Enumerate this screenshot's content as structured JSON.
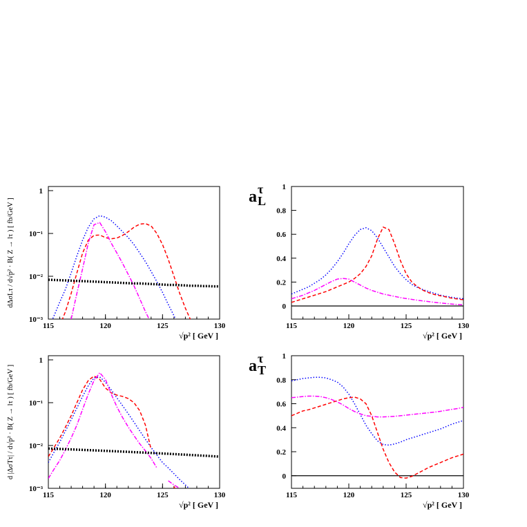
{
  "chart_data": [
    {
      "type": "line",
      "log_y": true,
      "ylabel": "dΔσLτ / d√p² · B( Z → lτ ) [ fb/GeV ]",
      "xlabel": "√p² [ GeV ]",
      "x": [
        115,
        115.5,
        116,
        116.5,
        117,
        117.5,
        118,
        118.5,
        119,
        119.5,
        120,
        120.5,
        121,
        121.5,
        122,
        122.5,
        123,
        123.5,
        124,
        124.5,
        125,
        125.5,
        126,
        126.5,
        127,
        127.5,
        128,
        128.5,
        129,
        129.5,
        130
      ],
      "xlim": [
        115,
        130
      ],
      "xticks": [
        115,
        120,
        125,
        130
      ],
      "ylim": [
        0.001,
        1.25
      ],
      "yticks": [
        {
          "value": 0.001,
          "label": "10⁻³"
        },
        {
          "value": 0.01,
          "label": "10⁻²"
        },
        {
          "value": 0.1,
          "label": "10⁻¹"
        },
        1
      ],
      "series": [
        {
          "color": "#0000ff",
          "dash": "1.5,2.5",
          "width": 1.5,
          "values": [
            0.0006,
            0.0012,
            0.0025,
            0.005,
            0.012,
            0.03,
            0.07,
            0.14,
            0.22,
            0.26,
            0.24,
            0.2,
            0.15,
            0.11,
            0.08,
            0.055,
            0.035,
            0.022,
            0.013,
            0.0075,
            0.0042,
            0.0022,
            0.0012,
            0.0006,
            null,
            null,
            null,
            null,
            null,
            null,
            null
          ]
        },
        {
          "color": "#ff0000",
          "dash": "5,3",
          "width": 1.5,
          "values": [
            null,
            null,
            0.0007,
            0.0015,
            0.004,
            0.012,
            0.035,
            0.07,
            0.09,
            0.092,
            0.08,
            0.075,
            0.078,
            0.09,
            0.11,
            0.14,
            0.165,
            0.17,
            0.15,
            0.1,
            0.055,
            0.025,
            0.01,
            0.004,
            0.0018,
            0.0009,
            null,
            null,
            null,
            null,
            null
          ]
        },
        {
          "color": "#ff00ff",
          "dash": "6,2,1.5,2",
          "width": 1.5,
          "values": [
            null,
            null,
            null,
            null,
            0.001,
            0.004,
            0.015,
            0.06,
            0.16,
            0.18,
            0.11,
            0.06,
            0.035,
            0.02,
            0.011,
            0.006,
            0.003,
            0.0015,
            0.0008,
            null,
            null,
            null,
            null,
            null,
            null,
            null,
            null,
            null,
            null,
            null,
            null
          ]
        },
        {
          "color": "#000000",
          "dash": "2,2",
          "width": 3.5,
          "values": [
            0.0083,
            0.0082,
            0.0081,
            0.008,
            0.0079,
            0.0078,
            0.0077,
            0.0076,
            0.0075,
            0.0074,
            0.0073,
            0.0072,
            0.0071,
            0.007,
            0.0069,
            0.0068,
            0.0068,
            0.0067,
            0.0066,
            0.0065,
            0.0064,
            0.0063,
            0.0063,
            0.0062,
            0.0061,
            0.006,
            0.006,
            0.0059,
            0.0059,
            0.0058,
            0.0058
          ]
        }
      ]
    },
    {
      "type": "line",
      "log_y": false,
      "zero_line": true,
      "ylabel": "a",
      "ylabel_sup": "τ",
      "ylabel_sub": "L",
      "xlabel": "√p² [ GeV ]",
      "x": [
        115,
        115.5,
        116,
        116.5,
        117,
        117.5,
        118,
        118.5,
        119,
        119.5,
        120,
        120.5,
        121,
        121.5,
        122,
        122.5,
        123,
        123.5,
        124,
        124.5,
        125,
        125.5,
        126,
        126.5,
        127,
        127.5,
        128,
        128.5,
        129,
        129.5,
        130
      ],
      "xlim": [
        115,
        130
      ],
      "xticks": [
        115,
        120,
        125,
        130
      ],
      "ylim": [
        -0.11,
        1.0
      ],
      "yticks": [
        0,
        0.2,
        0.4,
        0.6,
        0.8,
        1
      ],
      "series": [
        {
          "color": "#0000ff",
          "dash": "1.5,2.5",
          "width": 1.5,
          "values": [
            0.1,
            0.12,
            0.14,
            0.16,
            0.19,
            0.22,
            0.26,
            0.31,
            0.37,
            0.44,
            0.52,
            0.59,
            0.64,
            0.655,
            0.63,
            0.57,
            0.49,
            0.41,
            0.33,
            0.27,
            0.22,
            0.18,
            0.155,
            0.135,
            0.12,
            0.105,
            0.09,
            0.08,
            0.072,
            0.065,
            0.06
          ]
        },
        {
          "color": "#ff0000",
          "dash": "5,3",
          "width": 1.5,
          "values": [
            0.03,
            0.045,
            0.06,
            0.075,
            0.09,
            0.105,
            0.12,
            0.14,
            0.16,
            0.18,
            0.2,
            0.23,
            0.27,
            0.33,
            0.42,
            0.56,
            0.66,
            0.64,
            0.52,
            0.38,
            0.27,
            0.2,
            0.16,
            0.13,
            0.11,
            0.095,
            0.085,
            0.075,
            0.065,
            0.058,
            0.052
          ]
        },
        {
          "color": "#ff00ff",
          "dash": "6,2,1.5,2",
          "width": 1.5,
          "values": [
            0.06,
            0.075,
            0.09,
            0.11,
            0.13,
            0.155,
            0.18,
            0.205,
            0.225,
            0.23,
            0.225,
            0.2,
            0.175,
            0.15,
            0.13,
            0.115,
            0.1,
            0.09,
            0.08,
            0.07,
            0.062,
            0.055,
            0.048,
            0.042,
            0.036,
            0.03,
            0.025,
            0.02,
            0.016,
            0.012,
            0.009
          ]
        }
      ]
    },
    {
      "type": "line",
      "log_y": true,
      "ylabel": "d |ΔσTτ| / d√p² · B( Z → lτ ) [ fb/GeV ]",
      "xlabel": "√p² [ GeV ]",
      "x": [
        115,
        115.5,
        116,
        116.5,
        117,
        117.5,
        118,
        118.5,
        119,
        119.5,
        120,
        120.5,
        121,
        121.5,
        122,
        122.5,
        123,
        123.5,
        124,
        124.5,
        125,
        125.5,
        126,
        126.5,
        127,
        127.5,
        128,
        128.5,
        129,
        129.5,
        130
      ],
      "xlim": [
        115,
        130
      ],
      "xticks": [
        115,
        120,
        125,
        130
      ],
      "ylim": [
        0.001,
        1.25
      ],
      "yticks": [
        {
          "value": 0.001,
          "label": "10⁻³"
        },
        {
          "value": 0.01,
          "label": "10⁻²"
        },
        {
          "value": 0.1,
          "label": "10⁻¹"
        },
        1
      ],
      "series": [
        {
          "color": "#0000ff",
          "dash": "1.5,2.5",
          "width": 1.5,
          "values": [
            0.004,
            0.007,
            0.012,
            0.022,
            0.04,
            0.075,
            0.14,
            0.25,
            0.38,
            0.4,
            0.3,
            0.2,
            0.13,
            0.085,
            0.055,
            0.035,
            0.022,
            0.014,
            0.009,
            0.006,
            0.004,
            0.003,
            0.0022,
            0.0016,
            0.0012,
            0.0009,
            null,
            null,
            null,
            null,
            null
          ]
        },
        {
          "color": "#ff0000",
          "dash": "5,3",
          "width": 1.5,
          "values": [
            0.0055,
            0.009,
            0.015,
            0.027,
            0.05,
            0.1,
            0.2,
            0.33,
            0.42,
            0.35,
            0.22,
            0.17,
            0.15,
            0.14,
            0.125,
            0.1,
            0.065,
            0.03,
            0.008,
            null,
            0.004,
            null,
            0.0011,
            0.0006,
            null,
            null,
            null,
            null,
            null,
            null,
            null
          ]
        },
        {
          "color": "#ff00ff",
          "dash": "6,2,1.5,2",
          "width": 1.5,
          "values": [
            0.0017,
            0.0028,
            0.0045,
            0.008,
            0.015,
            0.03,
            0.07,
            0.16,
            0.33,
            0.5,
            0.35,
            0.16,
            0.08,
            0.045,
            0.027,
            0.017,
            0.011,
            0.0075,
            0.005,
            0.003,
            null,
            0.0015,
            0.0012,
            0.001,
            null,
            null,
            null,
            null,
            null,
            null,
            null
          ]
        },
        {
          "color": "#000000",
          "dash": "2,2",
          "width": 3.5,
          "values": [
            0.0085,
            0.0084,
            0.0083,
            0.0082,
            0.0081,
            0.008,
            0.0079,
            0.0078,
            0.0077,
            0.0076,
            0.0075,
            0.0074,
            0.0073,
            0.0072,
            0.0071,
            0.007,
            0.0069,
            0.0068,
            0.0067,
            0.0066,
            0.0065,
            0.0064,
            0.0063,
            0.0062,
            0.0061,
            0.006,
            0.0059,
            0.0058,
            0.0057,
            0.0056,
            0.0055
          ]
        }
      ]
    },
    {
      "type": "line",
      "log_y": false,
      "zero_line": true,
      "ylabel": "a",
      "ylabel_sup": "τ",
      "ylabel_sub": "T",
      "xlabel": "√p² [ GeV ]",
      "x": [
        115,
        115.5,
        116,
        116.5,
        117,
        117.5,
        118,
        118.5,
        119,
        119.5,
        120,
        120.5,
        121,
        121.5,
        122,
        122.5,
        123,
        123.5,
        124,
        124.5,
        125,
        125.5,
        126,
        126.5,
        127,
        127.5,
        128,
        128.5,
        129,
        129.5,
        130
      ],
      "xlim": [
        115,
        130
      ],
      "xticks": [
        115,
        120,
        125,
        130
      ],
      "ylim": [
        -0.105,
        1.0
      ],
      "yticks": [
        0,
        0.2,
        0.4,
        0.6,
        0.8,
        1
      ],
      "series": [
        {
          "color": "#0000ff",
          "dash": "1.5,2.5",
          "width": 1.5,
          "values": [
            0.79,
            0.8,
            0.81,
            0.815,
            0.82,
            0.82,
            0.815,
            0.8,
            0.78,
            0.74,
            0.68,
            0.6,
            0.51,
            0.42,
            0.35,
            0.29,
            0.26,
            0.255,
            0.265,
            0.28,
            0.3,
            0.315,
            0.33,
            0.345,
            0.36,
            0.375,
            0.39,
            0.41,
            0.43,
            0.445,
            0.46
          ]
        },
        {
          "color": "#ff0000",
          "dash": "5,3",
          "width": 1.5,
          "values": [
            0.5,
            0.52,
            0.54,
            0.55,
            0.565,
            0.58,
            0.595,
            0.61,
            0.625,
            0.64,
            0.65,
            0.655,
            0.64,
            0.6,
            0.5,
            0.36,
            0.22,
            0.11,
            0.03,
            -0.015,
            -0.02,
            -0.005,
            0.02,
            0.045,
            0.07,
            0.09,
            0.11,
            0.13,
            0.15,
            0.165,
            0.18
          ]
        },
        {
          "color": "#ff00ff",
          "dash": "6,2,1.5,2",
          "width": 1.5,
          "values": [
            0.65,
            0.655,
            0.66,
            0.663,
            0.663,
            0.66,
            0.65,
            0.635,
            0.615,
            0.59,
            0.56,
            0.535,
            0.515,
            0.5,
            0.495,
            0.49,
            0.49,
            0.492,
            0.495,
            0.5,
            0.505,
            0.51,
            0.515,
            0.52,
            0.525,
            0.53,
            0.537,
            0.545,
            0.553,
            0.56,
            0.57
          ]
        }
      ]
    }
  ]
}
